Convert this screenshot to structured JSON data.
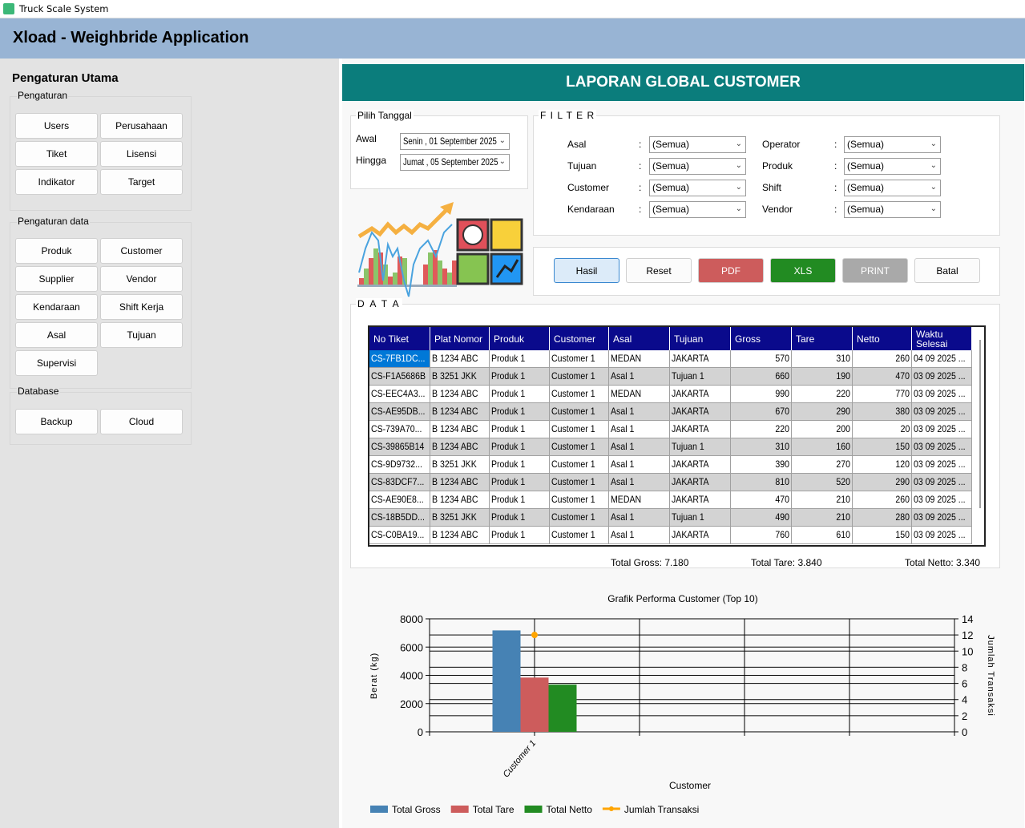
{
  "window": {
    "title": "Truck Scale System"
  },
  "header": {
    "title": "Xload - Weighbride Application"
  },
  "sidebar": {
    "title": "Pengaturan Utama",
    "groups": [
      {
        "label": "Pengaturan",
        "items": [
          "Users",
          "Perusahaan",
          "Tiket",
          "Lisensi",
          "Indikator",
          "Target"
        ]
      },
      {
        "label": "Pengaturan data",
        "items": [
          "Produk",
          "Customer",
          "Supplier",
          "Vendor",
          "Kendaraan",
          "Shift Kerja",
          "Asal",
          "Tujuan",
          "Supervisi"
        ]
      },
      {
        "label": "Database",
        "items": [
          "Backup",
          "Cloud"
        ]
      }
    ]
  },
  "report": {
    "title": "LAPORAN GLOBAL CUSTOMER",
    "date": {
      "label": "Pilih Tanggal",
      "from_label": "Awal",
      "from": "Senin , 01 September 2025",
      "to_label": "Hingga",
      "to": "Jumat , 05 September 2025"
    },
    "filter": {
      "label": "F I L T E R",
      "fields": [
        {
          "label": "Asal",
          "value": "(Semua)"
        },
        {
          "label": "Tujuan",
          "value": "(Semua)"
        },
        {
          "label": "Customer",
          "value": "(Semua)"
        },
        {
          "label": "Kendaraan",
          "value": "(Semua)"
        },
        {
          "label": "Operator",
          "value": "(Semua)"
        },
        {
          "label": "Produk",
          "value": "(Semua)"
        },
        {
          "label": "Shift",
          "value": "(Semua)"
        },
        {
          "label": "Vendor",
          "value": "(Semua)"
        }
      ]
    },
    "actions": [
      {
        "label": "Hasil",
        "bg": "#dcebf9",
        "color": "#000"
      },
      {
        "label": "Reset",
        "bg": "#fbfbfb",
        "color": "#000"
      },
      {
        "label": "PDF",
        "bg": "#cd5c5c",
        "color": "#fff"
      },
      {
        "label": "XLS",
        "bg": "#228b22",
        "color": "#fff"
      },
      {
        "label": "PRINT",
        "bg": "#a9a9a9",
        "color": "#fff"
      },
      {
        "label": "Batal",
        "bg": "#fbfbfb",
        "color": "#000"
      }
    ],
    "data_label": "D A T A",
    "columns": [
      "No Tiket",
      "Plat Nomor",
      "Produk",
      "Customer",
      "Asal",
      "Tujuan",
      "Gross",
      "Tare",
      "Netto",
      "Waktu Selesai"
    ],
    "rows": [
      [
        "CS-7FB1DC...",
        "B 1234 ABC",
        "Produk 1",
        "Customer 1",
        "MEDAN",
        "JAKARTA",
        "570",
        "310",
        "260",
        "04 09 2025 ..."
      ],
      [
        "CS-F1A5686B",
        "B 3251 JKK",
        "Produk 1",
        "Customer 1",
        "Asal 1",
        "Tujuan 1",
        "660",
        "190",
        "470",
        "03 09 2025 ..."
      ],
      [
        "CS-EEC4A3...",
        "B 1234 ABC",
        "Produk 1",
        "Customer 1",
        "MEDAN",
        "JAKARTA",
        "990",
        "220",
        "770",
        "03 09 2025 ..."
      ],
      [
        "CS-AE95DB...",
        "B 1234 ABC",
        "Produk 1",
        "Customer 1",
        "Asal 1",
        "JAKARTA",
        "670",
        "290",
        "380",
        "03 09 2025 ..."
      ],
      [
        "CS-739A70...",
        "B 1234 ABC",
        "Produk 1",
        "Customer 1",
        "Asal 1",
        "JAKARTA",
        "220",
        "200",
        "20",
        "03 09 2025 ..."
      ],
      [
        "CS-39865B14",
        "B 1234 ABC",
        "Produk 1",
        "Customer 1",
        "Asal 1",
        "Tujuan 1",
        "310",
        "160",
        "150",
        "03 09 2025 ..."
      ],
      [
        "CS-9D9732...",
        "B 3251 JKK",
        "Produk 1",
        "Customer 1",
        "Asal 1",
        "JAKARTA",
        "390",
        "270",
        "120",
        "03 09 2025 ..."
      ],
      [
        "CS-83DCF7...",
        "B 1234 ABC",
        "Produk 1",
        "Customer 1",
        "Asal 1",
        "JAKARTA",
        "810",
        "520",
        "290",
        "03 09 2025 ..."
      ],
      [
        "CS-AE90E8...",
        "B 1234 ABC",
        "Produk 1",
        "Customer 1",
        "MEDAN",
        "JAKARTA",
        "470",
        "210",
        "260",
        "03 09 2025 ..."
      ],
      [
        "CS-18B5DD...",
        "B 3251 JKK",
        "Produk 1",
        "Customer 1",
        "Asal 1",
        "Tujuan 1",
        "490",
        "210",
        "280",
        "03 09 2025 ..."
      ],
      [
        "CS-C0BA19...",
        "B 1234 ABC",
        "Produk 1",
        "Customer 1",
        "Asal 1",
        "JAKARTA",
        "760",
        "610",
        "150",
        "03 09 2025 ..."
      ]
    ],
    "totals": {
      "gross": "Total Gross: 7.180",
      "tare": "Total Tare: 3.840",
      "netto": "Total Netto: 3.340"
    }
  },
  "chart_data": {
    "type": "bar",
    "title": "Grafik Performa Customer (Top 10)",
    "xlabel": "Customer",
    "ylabel": "Berat (kg)",
    "y2label": "Jumlah Transaksi",
    "categories": [
      "Customer 1"
    ],
    "ylim": [
      0,
      8000
    ],
    "y2lim": [
      0,
      14
    ],
    "yticks": [
      0,
      2000,
      4000,
      6000,
      8000
    ],
    "y2ticks": [
      0,
      2,
      4,
      6,
      8,
      10,
      12,
      14
    ],
    "series": [
      {
        "name": "Total Gross",
        "values": [
          7180
        ],
        "color": "#4682b4",
        "kind": "bar"
      },
      {
        "name": "Total Tare",
        "values": [
          3840
        ],
        "color": "#cd5c5c",
        "kind": "bar"
      },
      {
        "name": "Total Netto",
        "values": [
          3340
        ],
        "color": "#228b22",
        "kind": "bar"
      },
      {
        "name": "Jumlah Transaksi",
        "values": [
          12
        ],
        "color": "#ffa500",
        "kind": "line",
        "axis": "y2"
      }
    ],
    "grid": true,
    "legend": "bottom-left"
  }
}
